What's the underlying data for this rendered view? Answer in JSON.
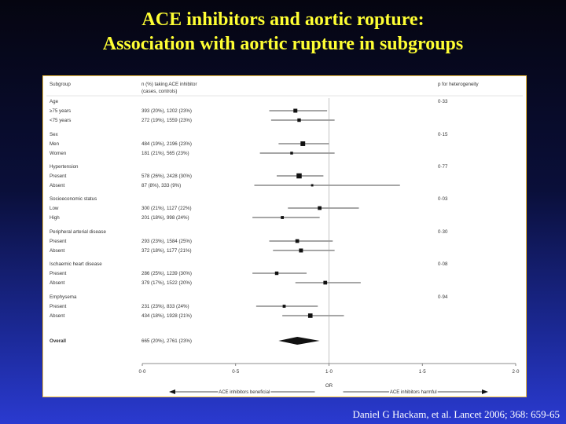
{
  "title": {
    "line1": "ACE inhibitors and aortic ropture:",
    "line2": "Association with aortic rupture in subgroups"
  },
  "citation": "Daniel G Hackam, et al. Lancet 2006; 368: 659-65",
  "chart_data": {
    "type": "forest",
    "headers": {
      "subgroup": "Subgroup",
      "n_line1": "n (%) taking ACE inhibitor",
      "n_line2": "(cases, controls)",
      "p": "p for heterogeneity"
    },
    "xlabel": "OR",
    "xlim": [
      0.0,
      2.0
    ],
    "xticks": [
      {
        "v": 0.0,
        "label": "0·0"
      },
      {
        "v": 0.5,
        "label": "0·5"
      },
      {
        "v": 1.0,
        "label": "1·0"
      },
      {
        "v": 1.5,
        "label": "1·5"
      },
      {
        "v": 2.0,
        "label": "2·0"
      }
    ],
    "reference_line": 1.0,
    "arrow_left_label": "ACE inhibitors beneficial",
    "arrow_right_label": "ACE inhibitors harmful",
    "groups": [
      {
        "name": "Age",
        "p": "0·33",
        "rows": [
          {
            "label": "≥75 years",
            "n": "393 (20%), 1202 (23%)",
            "or": 0.82,
            "lo": 0.68,
            "hi": 0.99,
            "size": 1.0
          },
          {
            "label": "<75 years",
            "n": "272 (19%), 1559 (23%)",
            "or": 0.84,
            "lo": 0.69,
            "hi": 1.03,
            "size": 0.8
          }
        ]
      },
      {
        "name": "Sex",
        "p": "0·15",
        "rows": [
          {
            "label": "Men",
            "n": "484 (19%), 2196 (23%)",
            "or": 0.86,
            "lo": 0.73,
            "hi": 1.0,
            "size": 1.3
          },
          {
            "label": "Women",
            "n": "181 (21%), 565 (23%)",
            "or": 0.8,
            "lo": 0.63,
            "hi": 1.03,
            "size": 0.5
          }
        ]
      },
      {
        "name": "Hypertension",
        "p": "0·77",
        "rows": [
          {
            "label": "Present",
            "n": "578 (26%), 2428 (30%)",
            "or": 0.84,
            "lo": 0.72,
            "hi": 0.97,
            "size": 1.5
          },
          {
            "label": "Absent",
            "n": "87 (8%), 333 (9%)",
            "or": 0.91,
            "lo": 0.6,
            "hi": 1.38,
            "size": 0.3
          }
        ]
      },
      {
        "name": "Socioeconomic status",
        "p": "0·03",
        "rows": [
          {
            "label": "Low",
            "n": "300 (21%), 1127 (22%)",
            "or": 0.95,
            "lo": 0.78,
            "hi": 1.16,
            "size": 0.9
          },
          {
            "label": "High",
            "n": "201 (18%), 998 (24%)",
            "or": 0.75,
            "lo": 0.59,
            "hi": 0.95,
            "size": 0.6
          }
        ]
      },
      {
        "name": "Peripheral arterial disease",
        "p": "0·30",
        "rows": [
          {
            "label": "Present",
            "n": "293 (23%), 1584 (25%)",
            "or": 0.83,
            "lo": 0.68,
            "hi": 1.02,
            "size": 0.9
          },
          {
            "label": "Absent",
            "n": "372 (18%), 1177 (21%)",
            "or": 0.85,
            "lo": 0.7,
            "hi": 1.03,
            "size": 1.0
          }
        ]
      },
      {
        "name": "Ischaemic heart disease",
        "p": "0·08",
        "rows": [
          {
            "label": "Present",
            "n": "286 (25%), 1239 (30%)",
            "or": 0.72,
            "lo": 0.59,
            "hi": 0.88,
            "size": 0.8
          },
          {
            "label": "Absent",
            "n": "379 (17%), 1522 (20%)",
            "or": 0.98,
            "lo": 0.82,
            "hi": 1.17,
            "size": 0.9
          }
        ]
      },
      {
        "name": "Emphysema",
        "p": "0·94",
        "rows": [
          {
            "label": "Present",
            "n": "231 (23%), 833 (24%)",
            "or": 0.76,
            "lo": 0.61,
            "hi": 0.94,
            "size": 0.6
          },
          {
            "label": "Absent",
            "n": "434 (18%), 1928 (21%)",
            "or": 0.9,
            "lo": 0.75,
            "hi": 1.08,
            "size": 1.2
          }
        ]
      }
    ],
    "overall": {
      "label": "Overall",
      "n": "665 (20%), 2761 (23%)",
      "or": 0.83,
      "lo": 0.73,
      "hi": 0.95
    }
  }
}
